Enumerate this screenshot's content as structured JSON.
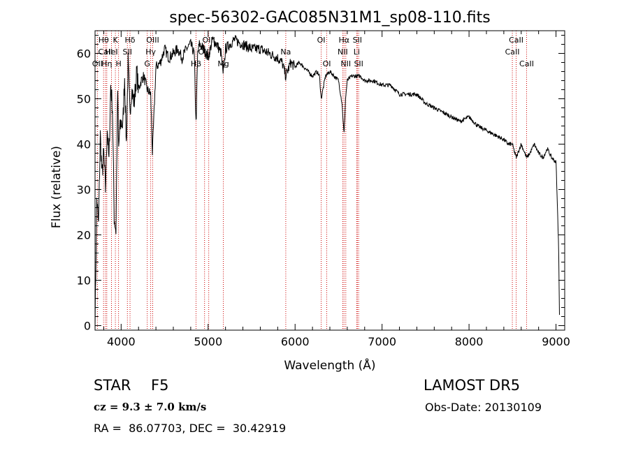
{
  "chart_data": {
    "type": "line",
    "title": "spec-56302-GAC085N31M1_sp08-110.fits",
    "xlabel": "Wavelength (Å)",
    "ylabel": "Flux (relative)",
    "xlim": [
      3700,
      9100
    ],
    "ylim": [
      -1,
      65
    ],
    "xticks": [
      4000,
      5000,
      6000,
      7000,
      8000,
      9000
    ],
    "yticks": [
      0,
      10,
      20,
      30,
      40,
      50,
      60
    ],
    "grid": false,
    "line_color": "#000000",
    "marker_color": "#cc0000",
    "series": [
      {
        "x": [
          3700,
          3720,
          3740,
          3760,
          3780,
          3800,
          3820,
          3840,
          3860,
          3880,
          3900,
          3920,
          3940,
          3960,
          3970,
          3980,
          4000,
          4020,
          4040,
          4060,
          4080,
          4100,
          4120,
          4150,
          4180,
          4200,
          4230,
          4260,
          4300,
          4340,
          4360,
          4400,
          4450,
          4500,
          4550,
          4600,
          4650,
          4700,
          4750,
          4800,
          4840,
          4861,
          4880,
          4900,
          4950,
          5000,
          5050,
          5100,
          5150,
          5172,
          5200,
          5250,
          5300,
          5400,
          5500,
          5600,
          5700,
          5800,
          5850,
          5893,
          5950,
          6000,
          6050,
          6100,
          6150,
          6200,
          6250,
          6280,
          6300,
          6350,
          6400,
          6450,
          6500,
          6540,
          6563,
          6580,
          6600,
          6650,
          6700,
          6750,
          6800,
          6900,
          7000,
          7100,
          7200,
          7300,
          7400,
          7500,
          7600,
          7700,
          7800,
          7900,
          8000,
          8100,
          8200,
          8300,
          8400,
          8450,
          8498,
          8542,
          8600,
          8662,
          8700,
          8750,
          8800,
          8850,
          8900,
          8950,
          9000,
          9030,
          9040
        ],
        "y": [
          0,
          28,
          22,
          42,
          33,
          38,
          30,
          44,
          36,
          53,
          48,
          24,
          21,
          52,
          38,
          42,
          45,
          44,
          55,
          40,
          58,
          47,
          52,
          49,
          56,
          52,
          54,
          55,
          52,
          51,
          38,
          57,
          58,
          61,
          59,
          60,
          61,
          59,
          61,
          62,
          60,
          44,
          60,
          62,
          61,
          59,
          63,
          62,
          60,
          55,
          61,
          62,
          63,
          62,
          61,
          61,
          60,
          59,
          58,
          55,
          58,
          57,
          58,
          57,
          56,
          55,
          56,
          55,
          50,
          55,
          56,
          55,
          54,
          49,
          42,
          50,
          54,
          55,
          55,
          55,
          54,
          54,
          53,
          53,
          51,
          51,
          51,
          49,
          48,
          47,
          46,
          45,
          46,
          44,
          43,
          42,
          41,
          40,
          40,
          37,
          40,
          37,
          38,
          40,
          38,
          37,
          39,
          37,
          36,
          18,
          2
        ]
      }
    ],
    "line_markers": [
      {
        "wl": 3727,
        "label": "OII",
        "pos": "low"
      },
      {
        "wl": 3798,
        "label": "Hθ",
        "pos": "top"
      },
      {
        "wl": 3820,
        "label": "CaII",
        "pos": "mid"
      },
      {
        "wl": 3835,
        "label": "Hη",
        "pos": "low"
      },
      {
        "wl": 3889,
        "label": "HeI",
        "pos": "mid"
      },
      {
        "wl": 3934,
        "label": "K",
        "pos": "top"
      },
      {
        "wl": 3970,
        "label": "H",
        "pos": "low"
      },
      {
        "wl": 4072,
        "label": "SII",
        "pos": "mid"
      },
      {
        "wl": 4102,
        "label": "Hδ",
        "pos": "top"
      },
      {
        "wl": 4300,
        "label": "G",
        "pos": "low"
      },
      {
        "wl": 4340,
        "label": "Hγ",
        "pos": "mid"
      },
      {
        "wl": 4363,
        "label": "OIII",
        "pos": "top"
      },
      {
        "wl": 4861,
        "label": "Hβ",
        "pos": "low"
      },
      {
        "wl": 4959,
        "label": "OIII",
        "pos": "mid"
      },
      {
        "wl": 5007,
        "label": "OIII",
        "pos": "top"
      },
      {
        "wl": 5175,
        "label": "Mg",
        "pos": "low"
      },
      {
        "wl": 5893,
        "label": "Na",
        "pos": "mid"
      },
      {
        "wl": 6300,
        "label": "OI",
        "pos": "top"
      },
      {
        "wl": 6364,
        "label": "OI",
        "pos": "low"
      },
      {
        "wl": 6548,
        "label": "NII",
        "pos": "mid"
      },
      {
        "wl": 6563,
        "label": "Hα",
        "pos": "top"
      },
      {
        "wl": 6583,
        "label": "NII",
        "pos": "low"
      },
      {
        "wl": 6708,
        "label": "Li",
        "pos": "mid"
      },
      {
        "wl": 6716,
        "label": "SII",
        "pos": "top"
      },
      {
        "wl": 6731,
        "label": "SII",
        "pos": "low"
      },
      {
        "wl": 8498,
        "label": "CaII",
        "pos": "mid"
      },
      {
        "wl": 8542,
        "label": "CaII",
        "pos": "top"
      },
      {
        "wl": 8662,
        "label": "CaII",
        "pos": "low"
      }
    ]
  },
  "info": {
    "class_label": "STAR",
    "subclass": "F5",
    "survey": "LAMOST DR5",
    "redshift_text": "cz = 9.3 ± 7.0 km/s",
    "obs_date": "Obs-Date: 20130109",
    "coords": "RA =  86.07703, DEC =  30.42919"
  }
}
